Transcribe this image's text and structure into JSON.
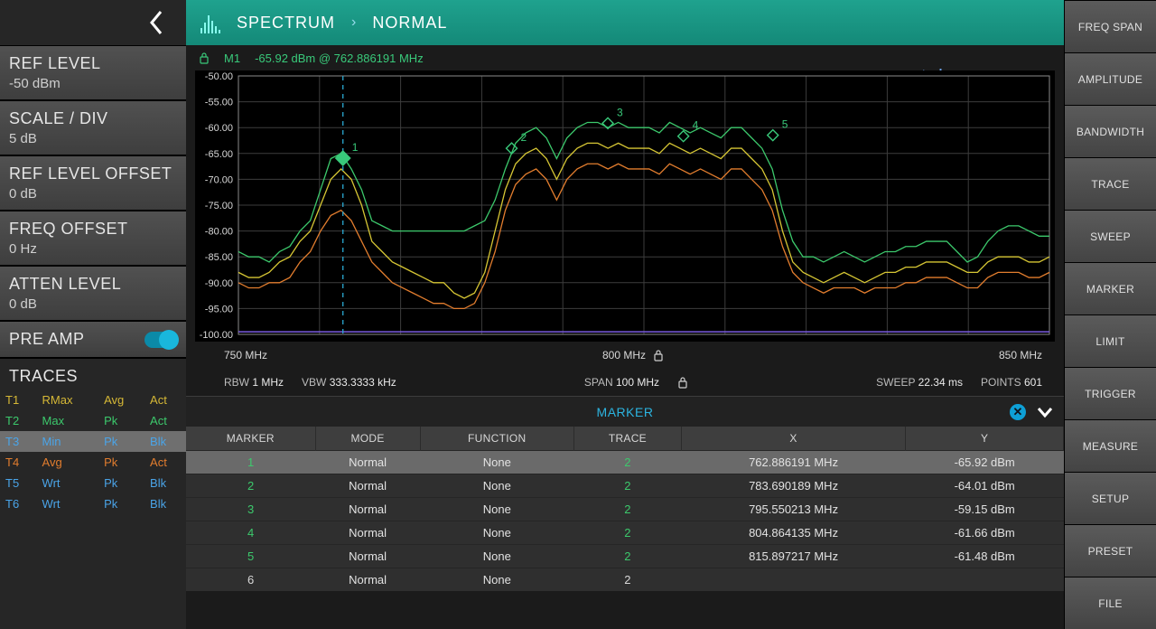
{
  "header": {
    "breadcrumb": [
      "SPECTRUM",
      "NORMAL"
    ],
    "watermark": "www.tehencom.com"
  },
  "left_params": [
    {
      "id": "ref-level",
      "title": "REF LEVEL",
      "value": "-50 dBm"
    },
    {
      "id": "scale-div",
      "title": "SCALE / DIV",
      "value": "5 dB"
    },
    {
      "id": "ref-level-offset",
      "title": "REF LEVEL OFFSET",
      "value": "0 dB"
    },
    {
      "id": "freq-offset",
      "title": "FREQ OFFSET",
      "value": "0 Hz"
    },
    {
      "id": "atten-level",
      "title": "ATTEN LEVEL",
      "value": "0 dB"
    }
  ],
  "preamp": {
    "title": "PRE AMP",
    "on": true
  },
  "traces_header": "TRACES",
  "traces_rows": [
    {
      "id": "T1",
      "mode": "RMax",
      "det": "Avg",
      "state": "Act",
      "color": "#d6b836"
    },
    {
      "id": "T2",
      "mode": "Max",
      "det": "Pk",
      "state": "Act",
      "color": "#3cc96c"
    },
    {
      "id": "T3",
      "mode": "Min",
      "det": "Pk",
      "state": "Blk",
      "color": "#4aa4e8"
    },
    {
      "id": "T4",
      "mode": "Avg",
      "det": "Pk",
      "state": "Act",
      "color": "#e27d2e"
    },
    {
      "id": "T5",
      "mode": "Wrt",
      "det": "Pk",
      "state": "Blk",
      "color": "#4aa4e8"
    },
    {
      "id": "T6",
      "mode": "Wrt",
      "det": "Pk",
      "state": "Blk",
      "color": "#4aa4e8"
    }
  ],
  "active_marker": {
    "label": "M1",
    "value": "-65.92 dBm @ 762.886191 MHz"
  },
  "chart": {
    "ylim": [
      -100,
      -50
    ],
    "ytick_step": 5,
    "xlim": [
      750,
      850
    ],
    "xlabels": {
      "start": "750 MHz",
      "center": "800 MHz",
      "stop": "850 MHz"
    },
    "grid_color": "#3d3d3d",
    "bg": "#000000",
    "marker_x": 762.886191,
    "marker_color": "#39c97a",
    "marker_line_color": "#2aa9d2",
    "bottom_trace_color": "#7b5ce0",
    "markers": [
      {
        "n": 1,
        "x": 762.886191,
        "y": -65.92
      },
      {
        "n": 2,
        "x": 783.690189,
        "y": -64.01
      },
      {
        "n": 3,
        "x": 795.550213,
        "y": -59.15
      },
      {
        "n": 4,
        "x": 804.864135,
        "y": -61.66
      },
      {
        "n": 5,
        "x": 815.897217,
        "y": -61.48
      }
    ],
    "traces": [
      {
        "name": "T2-max",
        "color": "#3cc96c",
        "width": 1.3,
        "y": [
          -84,
          -85,
          -85,
          -86,
          -84,
          -83,
          -80,
          -78,
          -72,
          -66,
          -65,
          -68,
          -72,
          -78,
          -79,
          -80,
          -80,
          -80,
          -80,
          -80,
          -80,
          -80,
          -80,
          -79,
          -78,
          -74,
          -68,
          -63,
          -61,
          -60,
          -62,
          -66,
          -62,
          -60,
          -59,
          -59,
          -60,
          -59,
          -60,
          -60,
          -60,
          -61,
          -59,
          -60,
          -61,
          -60,
          -61,
          -62,
          -60,
          -60,
          -62,
          -64,
          -68,
          -76,
          -82,
          -85,
          -85,
          -86,
          -85,
          -84,
          -85,
          -86,
          -85,
          -84,
          -84,
          -83,
          -83,
          -82,
          -82,
          -82,
          -84,
          -86,
          -85,
          -82,
          -80,
          -79,
          -79,
          -80,
          -81,
          -81
        ]
      },
      {
        "name": "T1-rmax",
        "color": "#d6c634",
        "width": 1.3,
        "y": [
          -88,
          -89,
          -89,
          -88,
          -86,
          -85,
          -82,
          -80,
          -75,
          -70,
          -68,
          -70,
          -75,
          -82,
          -84,
          -86,
          -87,
          -88,
          -89,
          -90,
          -90,
          -92,
          -93,
          -92,
          -88,
          -80,
          -72,
          -67,
          -65,
          -64,
          -66,
          -70,
          -66,
          -64,
          -63,
          -63,
          -64,
          -63,
          -64,
          -64,
          -64,
          -65,
          -63,
          -64,
          -65,
          -64,
          -65,
          -66,
          -64,
          -64,
          -66,
          -68,
          -72,
          -80,
          -86,
          -88,
          -89,
          -90,
          -89,
          -88,
          -89,
          -90,
          -89,
          -88,
          -88,
          -87,
          -87,
          -86,
          -86,
          -86,
          -87,
          -88,
          -88,
          -86,
          -85,
          -85,
          -85,
          -86,
          -86,
          -85
        ]
      },
      {
        "name": "T4-avg",
        "color": "#e27d2e",
        "width": 1.3,
        "y": [
          -90,
          -91,
          -91,
          -90,
          -90,
          -89,
          -86,
          -84,
          -80,
          -77,
          -76,
          -78,
          -82,
          -86,
          -88,
          -90,
          -91,
          -92,
          -93,
          -94,
          -94,
          -95,
          -95,
          -94,
          -90,
          -84,
          -76,
          -71,
          -69,
          -68,
          -70,
          -74,
          -70,
          -68,
          -67,
          -67,
          -68,
          -67,
          -68,
          -68,
          -68,
          -69,
          -67,
          -68,
          -69,
          -68,
          -69,
          -70,
          -68,
          -68,
          -70,
          -72,
          -76,
          -83,
          -88,
          -90,
          -91,
          -92,
          -91,
          -91,
          -91,
          -92,
          -91,
          -91,
          -91,
          -90,
          -90,
          -89,
          -89,
          -89,
          -90,
          -91,
          -91,
          -89,
          -88,
          -88,
          -88,
          -89,
          -89,
          -88
        ]
      }
    ]
  },
  "sweep_info": {
    "rbw_label": "RBW",
    "rbw": "1 MHz",
    "vbw_label": "VBW",
    "vbw": "333.3333 kHz",
    "span_label": "SPAN",
    "span": "100 MHz",
    "sweep_label": "SWEEP",
    "sweep": "22.34 ms",
    "points_label": "POINTS",
    "points": "601"
  },
  "marker_panel": {
    "title": "MARKER",
    "columns": [
      "MARKER",
      "MODE",
      "FUNCTION",
      "TRACE",
      "X",
      "Y"
    ],
    "rows": [
      {
        "n": 1,
        "mode": "Normal",
        "func": "None",
        "trace": 2,
        "x": "762.886191 MHz",
        "y": "-65.92 dBm",
        "color": "#3cc96c",
        "selected": true
      },
      {
        "n": 2,
        "mode": "Normal",
        "func": "None",
        "trace": 2,
        "x": "783.690189 MHz",
        "y": "-64.01 dBm",
        "color": "#3cc96c"
      },
      {
        "n": 3,
        "mode": "Normal",
        "func": "None",
        "trace": 2,
        "x": "795.550213 MHz",
        "y": "-59.15 dBm",
        "color": "#3cc96c"
      },
      {
        "n": 4,
        "mode": "Normal",
        "func": "None",
        "trace": 2,
        "x": "804.864135 MHz",
        "y": "-61.66 dBm",
        "color": "#3cc96c"
      },
      {
        "n": 5,
        "mode": "Normal",
        "func": "None",
        "trace": 2,
        "x": "815.897217 MHz",
        "y": "-61.48 dBm",
        "color": "#3cc96c"
      },
      {
        "n": 6,
        "mode": "Normal",
        "func": "None",
        "trace": 2,
        "x": "",
        "y": "",
        "color": "#d8d8d8"
      }
    ]
  },
  "right_menu": [
    "FREQ SPAN",
    "AMPLITUDE",
    "BANDWIDTH",
    "TRACE",
    "SWEEP",
    "MARKER",
    "LIMIT",
    "TRIGGER",
    "MEASURE",
    "SETUP",
    "PRESET",
    "FILE"
  ]
}
